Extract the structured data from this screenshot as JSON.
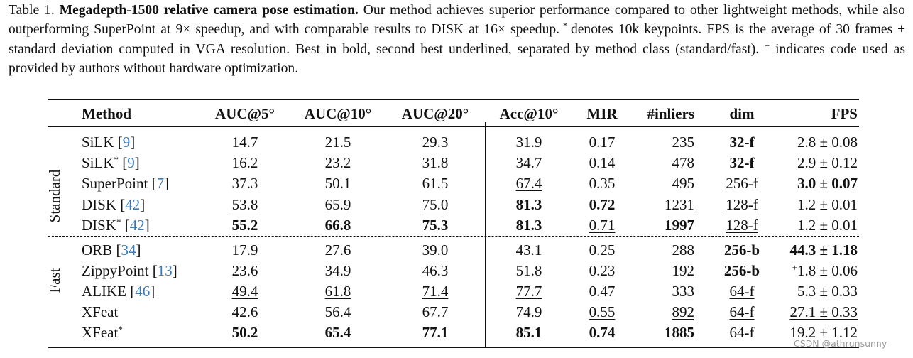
{
  "caption": {
    "label": "Table 1.",
    "title": "Megadepth-1500 relative camera pose estimation.",
    "segments": [
      "Our method achieves superior performance compared to other lightweight methods, while also outperforming SuperPoint at 9× speedup, and with comparable results to DISK at 16× speedup.",
      "*",
      "denotes 10k keypoints. FPS is the average of 30 frames ± standard deviation computed in VGA resolution. Best in bold, second best underlined, separated by method class (standard/fast).",
      "+",
      "indicates code used as provided by authors without hardware optimization."
    ]
  },
  "table": {
    "columns": [
      "Method",
      "AUC@5°",
      "AUC@10°",
      "AUC@20°",
      "Acc@10°",
      "MIR",
      "#inliers",
      "dim",
      "FPS"
    ],
    "groups": [
      {
        "label": "Standard",
        "rows": [
          [
            {
              "text": "SiLK",
              "cite": "[9]"
            },
            "14.7",
            "21.5",
            "29.3",
            "31.9",
            "0.17",
            "235",
            {
              "text": "32-f",
              "bold": true
            },
            "2.8 ± 0.08"
          ],
          [
            {
              "text": "SiLK",
              "sup": "*",
              "cite": "[9]"
            },
            "16.2",
            "23.2",
            "31.8",
            "34.7",
            "0.14",
            "478",
            {
              "text": "32-f",
              "bold": true
            },
            {
              "text": "2.9 ± 0.12",
              "underline": true
            }
          ],
          [
            {
              "text": "SuperPoint",
              "cite": "[7]"
            },
            "37.3",
            "50.1",
            "61.5",
            {
              "text": "67.4",
              "underline": true
            },
            "0.35",
            "495",
            "256-f",
            {
              "text": "3.0 ± 0.07",
              "bold": true
            }
          ],
          [
            {
              "text": "DISK",
              "cite": "[42]"
            },
            {
              "text": "53.8",
              "underline": true
            },
            {
              "text": "65.9",
              "underline": true
            },
            {
              "text": "75.0",
              "underline": true
            },
            {
              "text": "81.3",
              "bold": true
            },
            {
              "text": "0.72",
              "bold": true
            },
            {
              "text": "1231",
              "underline": true
            },
            {
              "text": "128-f",
              "underline": true
            },
            "1.2 ± 0.01"
          ],
          [
            {
              "text": "DISK",
              "sup": "*",
              "cite": "[42]"
            },
            {
              "text": "55.2",
              "bold": true
            },
            {
              "text": "66.8",
              "bold": true
            },
            {
              "text": "75.3",
              "bold": true
            },
            {
              "text": "81.3",
              "bold": true
            },
            {
              "text": "0.71",
              "underline": true
            },
            {
              "text": "1997",
              "bold": true
            },
            {
              "text": "128-f",
              "underline": true
            },
            "1.2 ± 0.01"
          ]
        ]
      },
      {
        "label": "Fast",
        "rows": [
          [
            {
              "text": "ORB",
              "cite": "[34]"
            },
            "17.9",
            "27.6",
            "39.0",
            "43.1",
            "0.25",
            "288",
            {
              "text": "256-b",
              "bold": true
            },
            {
              "text": "44.3 ± 1.18",
              "bold": true
            }
          ],
          [
            {
              "text": "ZippyPoint",
              "cite": "[13]"
            },
            "23.6",
            "34.9",
            "46.3",
            "51.8",
            "0.23",
            "192",
            {
              "text": "256-b",
              "bold": true
            },
            {
              "text": "1.8 ± 0.06",
              "pre_sup": "+"
            }
          ],
          [
            {
              "text": "ALIKE",
              "cite": "[46]"
            },
            {
              "text": "49.4",
              "underline": true
            },
            {
              "text": "61.8",
              "underline": true
            },
            {
              "text": "71.4",
              "underline": true
            },
            {
              "text": "77.7",
              "underline": true
            },
            "0.47",
            "333",
            {
              "text": "64-f",
              "underline": true
            },
            "5.3 ± 0.33"
          ],
          [
            "XFeat",
            "42.6",
            "56.4",
            "67.7",
            "74.9",
            {
              "text": "0.55",
              "underline": true
            },
            {
              "text": "892",
              "underline": true
            },
            {
              "text": "64-f",
              "underline": true
            },
            {
              "text": "27.1 ± 0.33",
              "underline": true
            }
          ],
          [
            {
              "text": "XFeat",
              "sup": "*"
            },
            {
              "text": "50.2",
              "bold": true
            },
            {
              "text": "65.4",
              "bold": true
            },
            {
              "text": "77.1",
              "bold": true
            },
            {
              "text": "85.1",
              "bold": true
            },
            {
              "text": "0.74",
              "bold": true
            },
            {
              "text": "1885",
              "bold": true
            },
            {
              "text": "64-f",
              "underline": true
            },
            "19.2 ± 1.12"
          ]
        ]
      }
    ]
  },
  "watermark": "CSDN @athrunsunny"
}
